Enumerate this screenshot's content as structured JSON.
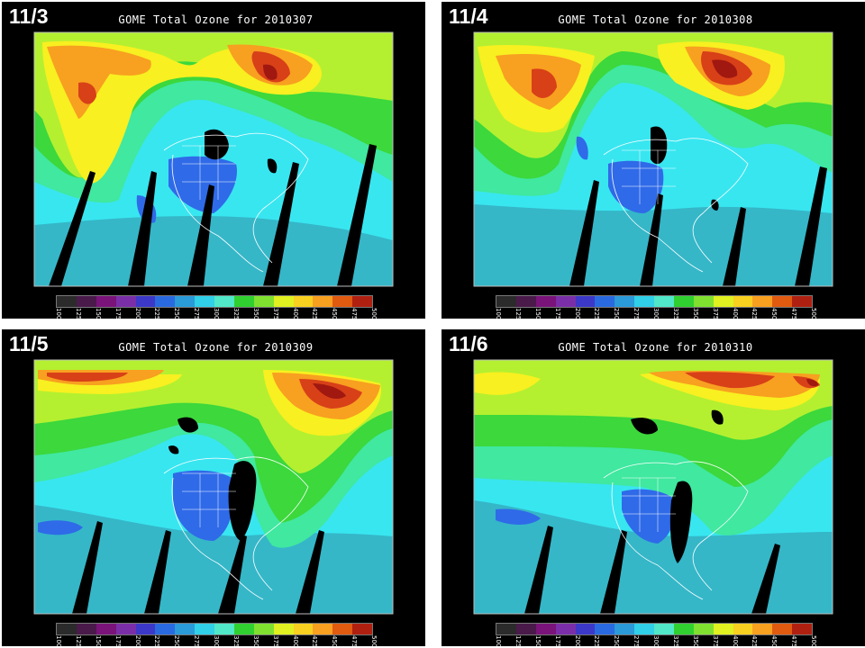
{
  "panels": [
    {
      "date_label": "11/3",
      "title": "GOME Total Ozone for 2010307"
    },
    {
      "date_label": "11/4",
      "title": "GOME Total Ozone for 2010308"
    },
    {
      "date_label": "11/5",
      "title": "GOME Total Ozone for 2010309"
    },
    {
      "date_label": "11/6",
      "title": "GOME Total Ozone for 2010310"
    }
  ],
  "colorbar": {
    "ticks": [
      "100",
      "125",
      "150",
      "175",
      "200",
      "225",
      "250",
      "275",
      "300",
      "325",
      "350",
      "375",
      "400",
      "425",
      "450",
      "475",
      "500"
    ],
    "colors": [
      "#2b2b2b",
      "#4a1a4a",
      "#7a137a",
      "#7a2fa8",
      "#3c38c8",
      "#2a6ae0",
      "#2a9ad8",
      "#30d0e8",
      "#50e8c8",
      "#30d030",
      "#80e030",
      "#e0f020",
      "#f8d020",
      "#f8a020",
      "#e05a10",
      "#b02010"
    ]
  },
  "palette": {
    "ocean": "#35b7c8",
    "cyan": "#38e6f0",
    "green_blue": "#40e8a0",
    "green": "#3cd83c",
    "yellow_green": "#b4f030",
    "yellow": "#f8f020",
    "orange": "#f8a020",
    "red": "#d84018",
    "deep_red": "#a01810",
    "blue": "#2f6ae8",
    "deep_blue": "#2a4ad8",
    "swath_gap": "#000000",
    "coast": "#ffffff"
  }
}
